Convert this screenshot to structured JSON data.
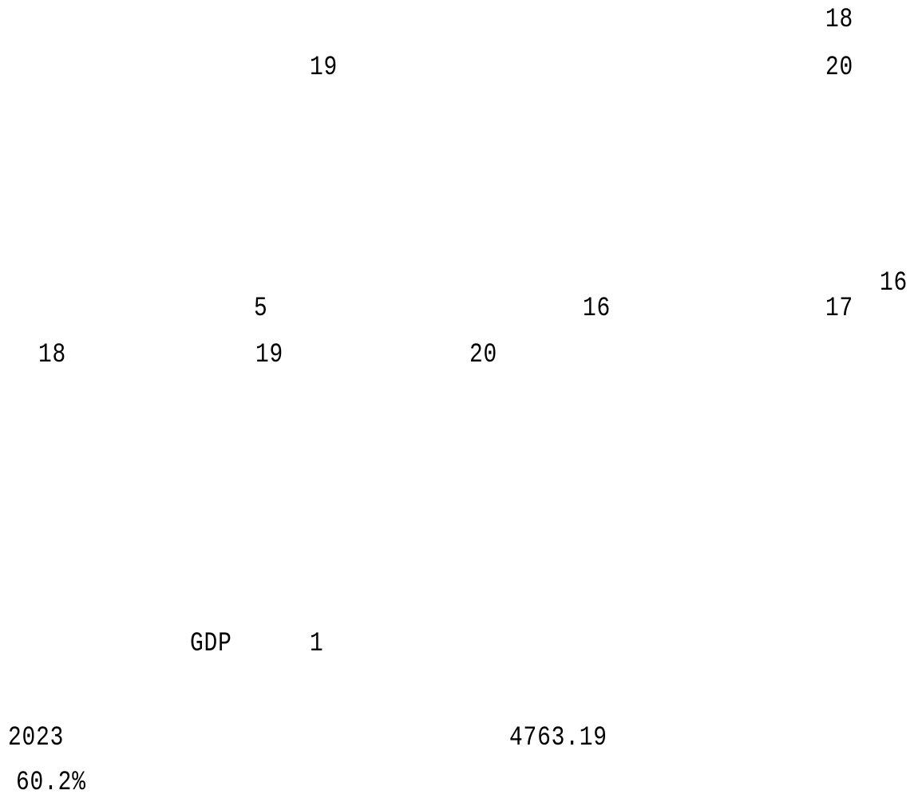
{
  "document": {
    "fragments": {
      "f01": "18",
      "f02": "19",
      "f03": "20",
      "f04": "16",
      "f05": "5",
      "f06": "16",
      "f07": "17",
      "f08": "18",
      "f09": "19",
      "f10": "20",
      "f11": "GDP",
      "f12": "1",
      "f13": "2023",
      "f14": "4763.19",
      "f15": "60.2%"
    }
  }
}
